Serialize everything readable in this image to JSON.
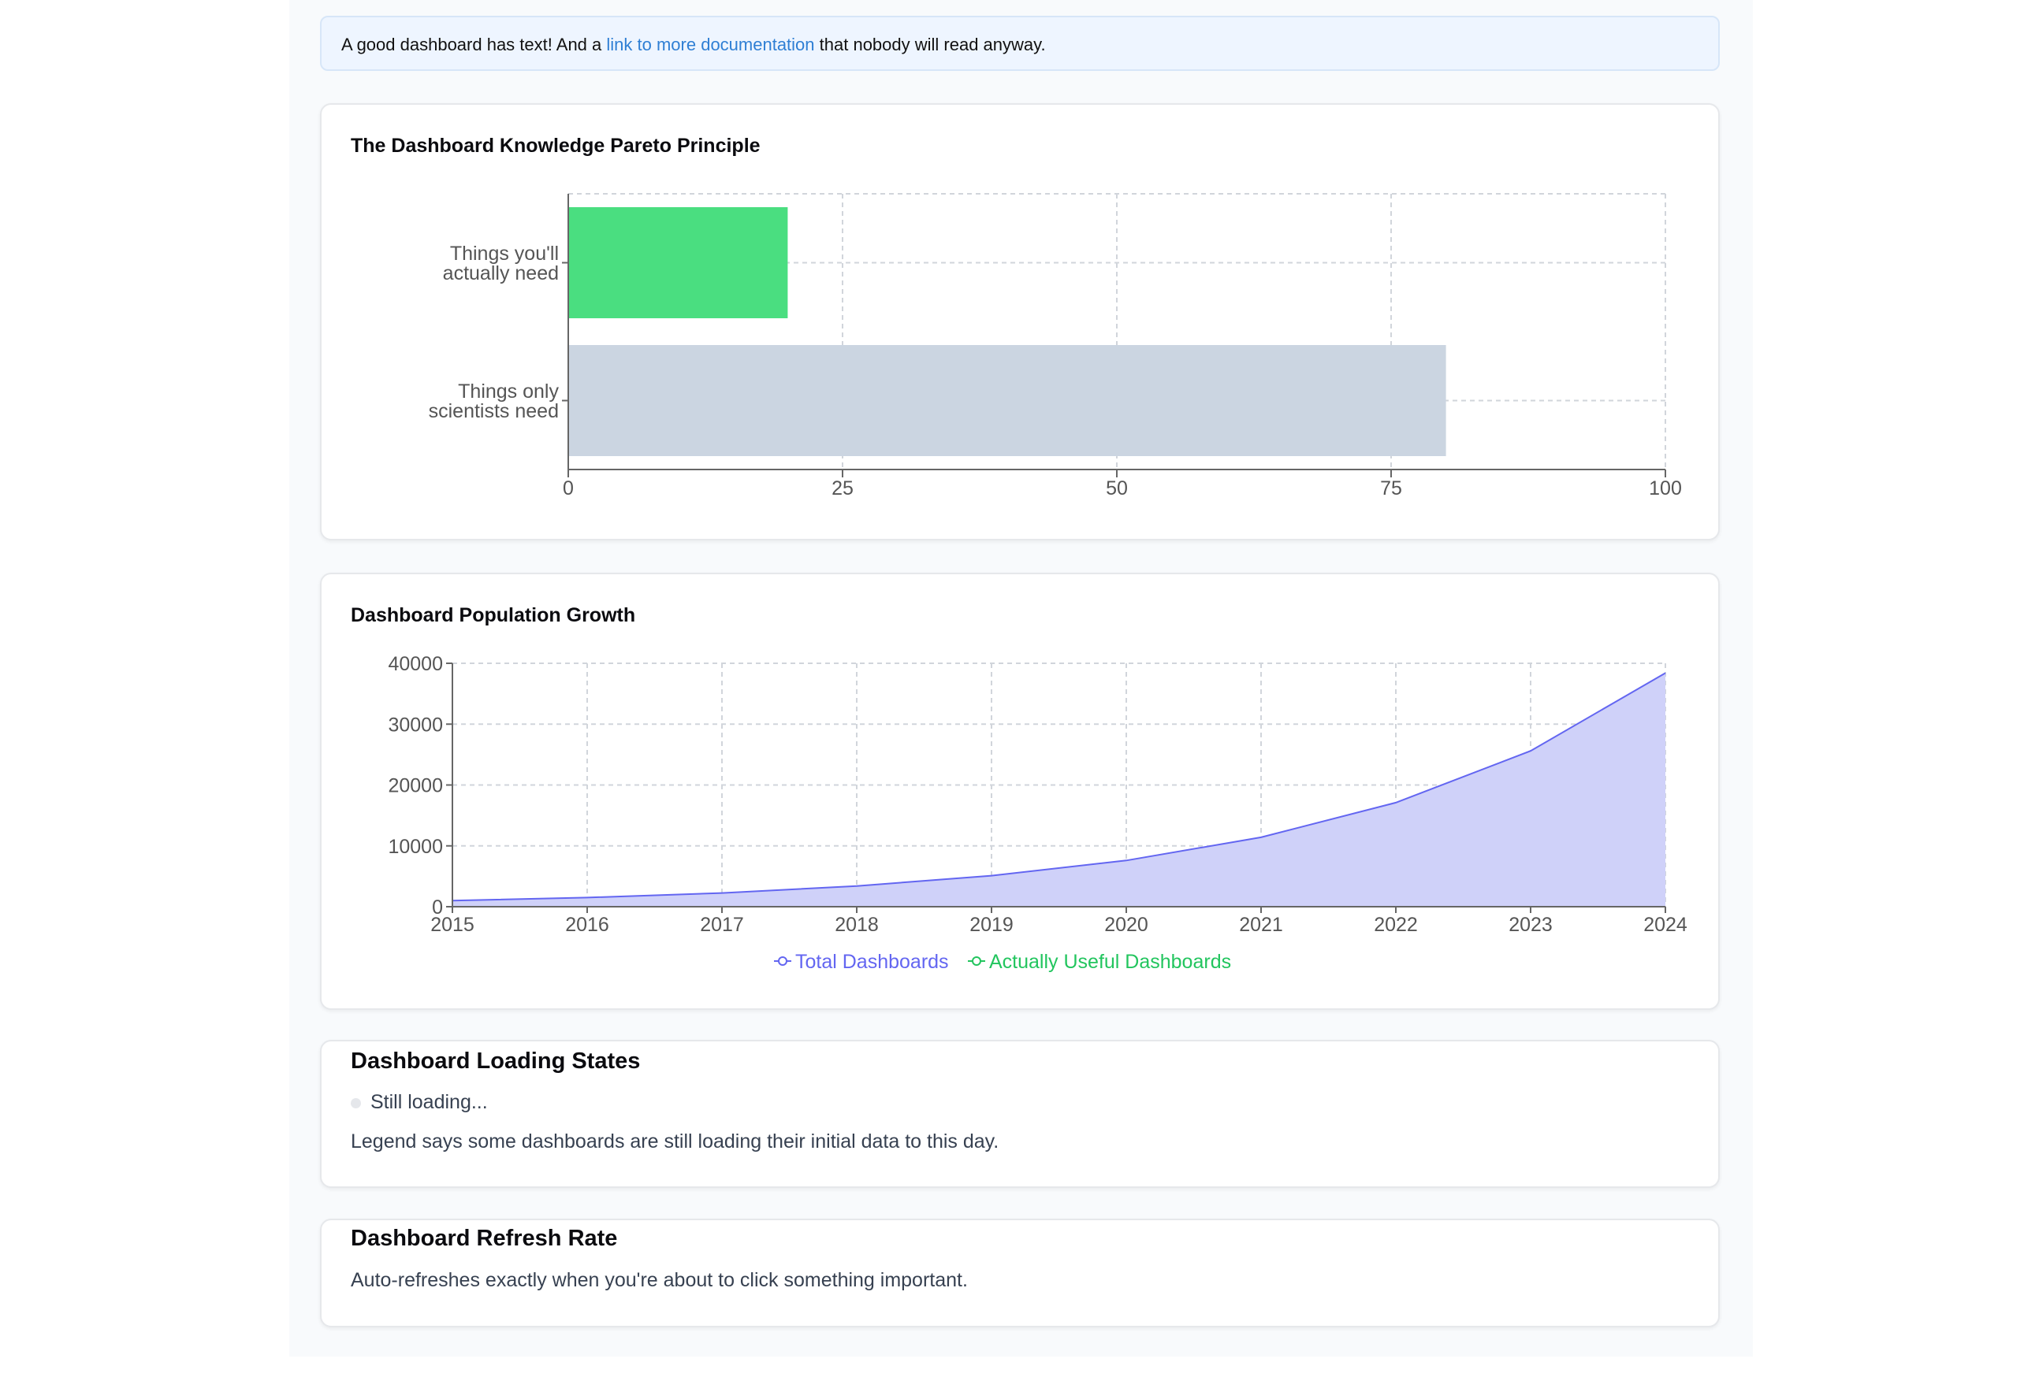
{
  "info": {
    "before": "A good dashboard has text! And a",
    "link": "link to more documentation",
    "after": "that nobody will read anyway."
  },
  "pareto": {
    "title": "The Dashboard Knowledge Pareto Principle",
    "chart_data": {
      "type": "bar",
      "orientation": "horizontal",
      "categories": [
        [
          "Things you'll",
          "actually need"
        ],
        [
          "Things only",
          "scientists need"
        ]
      ],
      "values": [
        20,
        80
      ],
      "colors": [
        "#4ade80",
        "#cbd5e1"
      ],
      "xlim": [
        0,
        100
      ],
      "xticks": [
        "0",
        "25",
        "50",
        "75",
        "100"
      ],
      "grid": true
    }
  },
  "growth": {
    "title": "Dashboard Population Growth",
    "chart_data": {
      "type": "area",
      "x": [
        "2015",
        "2016",
        "2017",
        "2018",
        "2019",
        "2020",
        "2021",
        "2022",
        "2023",
        "2024"
      ],
      "yticks": [
        "0",
        "10000",
        "20000",
        "30000",
        "40000"
      ],
      "ylim": [
        0,
        40000
      ],
      "grid": true,
      "legend_position": "bottom",
      "series": [
        {
          "name": "Total Dashboards",
          "color": "#6366f1",
          "fill": "#cfd1f9",
          "values": [
            1000,
            1500,
            2250,
            3400,
            5100,
            7600,
            11400,
            17100,
            25600,
            38400
          ]
        },
        {
          "name": "Actually Useful Dashboards",
          "color": "#22c55e",
          "values": [
            0,
            0,
            0,
            0,
            0,
            0,
            0,
            0,
            0,
            0
          ]
        }
      ]
    }
  },
  "loading": {
    "title": "Dashboard Loading States",
    "status": "Still loading...",
    "description": "Legend says some dashboards are still loading their initial data to this day."
  },
  "refresh": {
    "title": "Dashboard Refresh Rate",
    "description": "Auto-refreshes exactly when you're about to click something important."
  }
}
